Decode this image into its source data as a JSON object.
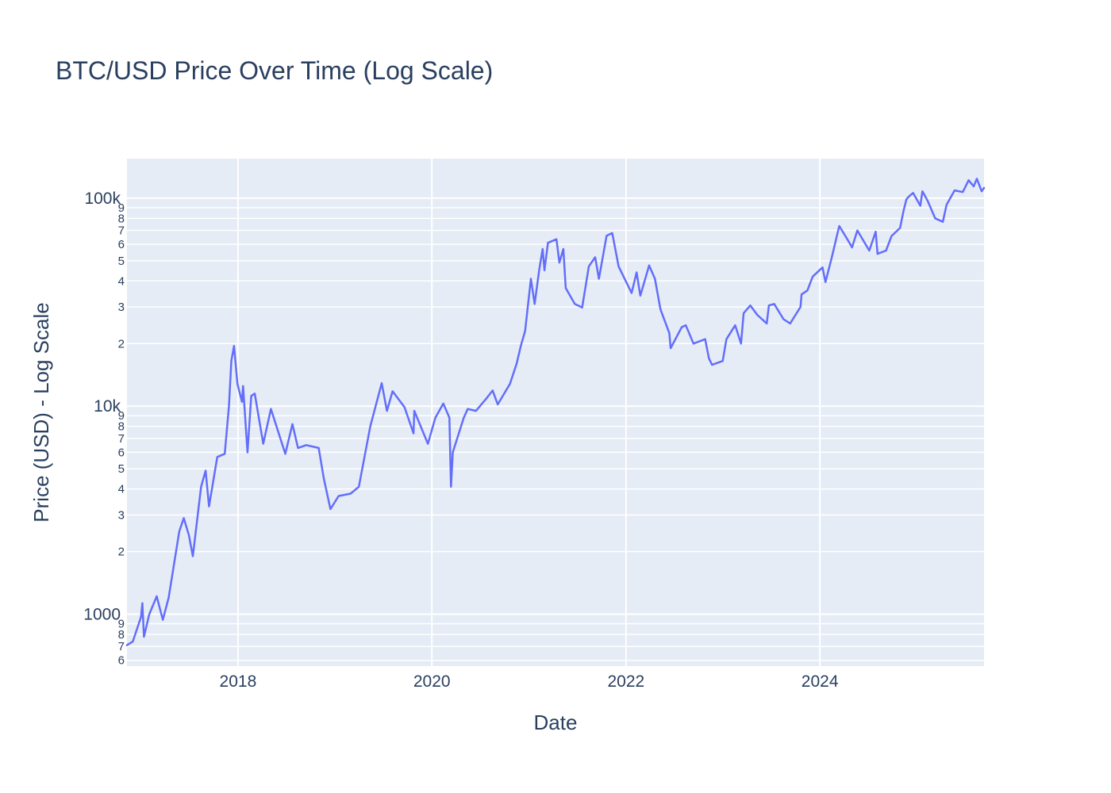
{
  "chart_data": {
    "type": "line",
    "title": "BTC/USD Price Over Time (Log Scale)",
    "xlabel": "Date",
    "ylabel": "Price (USD) - Log Scale",
    "y_scale": "log",
    "xlim": [
      "2016-11-09",
      "2025-09-10"
    ],
    "ylim": [
      563,
      155000
    ],
    "grid": true,
    "line_color": "#636efa",
    "plot_bgcolor": "#e5ecf6",
    "x_ticks": [
      {
        "value": "2018-01-01",
        "label": "2018"
      },
      {
        "value": "2020-01-01",
        "label": "2020"
      },
      {
        "value": "2022-01-01",
        "label": "2022"
      },
      {
        "value": "2024-01-01",
        "label": "2024"
      }
    ],
    "y_major_ticks": [
      {
        "value": 1000,
        "label": "1000"
      },
      {
        "value": 10000,
        "label": "10k"
      },
      {
        "value": 100000,
        "label": "100k"
      }
    ],
    "y_minor_ticks": [
      {
        "value": 600,
        "label": "6"
      },
      {
        "value": 700,
        "label": "7"
      },
      {
        "value": 800,
        "label": "8"
      },
      {
        "value": 900,
        "label": "9"
      },
      {
        "value": 2000,
        "label": "2"
      },
      {
        "value": 3000,
        "label": "3"
      },
      {
        "value": 4000,
        "label": "4"
      },
      {
        "value": 5000,
        "label": "5"
      },
      {
        "value": 6000,
        "label": "6"
      },
      {
        "value": 7000,
        "label": "7"
      },
      {
        "value": 8000,
        "label": "8"
      },
      {
        "value": 9000,
        "label": "9"
      },
      {
        "value": 20000,
        "label": "2"
      },
      {
        "value": 30000,
        "label": "3"
      },
      {
        "value": 40000,
        "label": "4"
      },
      {
        "value": 50000,
        "label": "5"
      },
      {
        "value": 60000,
        "label": "6"
      },
      {
        "value": 70000,
        "label": "7"
      },
      {
        "value": 80000,
        "label": "8"
      },
      {
        "value": 90000,
        "label": "9"
      }
    ],
    "series": [
      {
        "x": [
          "2016-11-09",
          "2016-12-01",
          "2017-01-01",
          "2017-01-06",
          "2017-01-12",
          "2017-02-01",
          "2017-03-01",
          "2017-03-10",
          "2017-03-24",
          "2017-04-15",
          "2017-05-25",
          "2017-06-11",
          "2017-06-30",
          "2017-07-15",
          "2017-08-15",
          "2017-09-01",
          "2017-09-14",
          "2017-10-15",
          "2017-11-12",
          "2017-11-28",
          "2017-12-07",
          "2017-12-17",
          "2017-12-30",
          "2018-01-16",
          "2018-01-20",
          "2018-02-06",
          "2018-02-20",
          "2018-03-05",
          "2018-04-06",
          "2018-05-05",
          "2018-06-28",
          "2018-07-25",
          "2018-08-15",
          "2018-09-15",
          "2018-11-01",
          "2018-11-20",
          "2018-12-15",
          "2019-01-15",
          "2019-03-01",
          "2019-04-01",
          "2019-05-14",
          "2019-06-26",
          "2019-07-16",
          "2019-08-06",
          "2019-09-20",
          "2019-10-24",
          "2019-10-27",
          "2019-12-17",
          "2020-01-14",
          "2020-02-13",
          "2020-03-07",
          "2020-03-13",
          "2020-03-20",
          "2020-04-30",
          "2020-05-15",
          "2020-06-15",
          "2020-07-27",
          "2020-08-17",
          "2020-09-05",
          "2020-10-21",
          "2020-11-15",
          "2020-12-01",
          "2020-12-17",
          "2021-01-08",
          "2021-01-22",
          "2021-02-08",
          "2021-02-21",
          "2021-02-28",
          "2021-03-13",
          "2021-04-14",
          "2021-04-25",
          "2021-05-10",
          "2021-05-19",
          "2021-06-22",
          "2021-07-20",
          "2021-08-14",
          "2021-09-07",
          "2021-09-21",
          "2021-10-20",
          "2021-11-10",
          "2021-12-04",
          "2022-01-22",
          "2022-02-10",
          "2022-02-24",
          "2022-03-29",
          "2022-04-20",
          "2022-05-09",
          "2022-05-12",
          "2022-06-13",
          "2022-06-18",
          "2022-07-30",
          "2022-08-14",
          "2022-09-12",
          "2022-10-26",
          "2022-11-09",
          "2022-11-21",
          "2022-12-31",
          "2023-01-14",
          "2023-02-16",
          "2023-03-10",
          "2023-03-20",
          "2023-04-14",
          "2023-05-10",
          "2023-06-15",
          "2023-06-23",
          "2023-07-13",
          "2023-08-17",
          "2023-09-11",
          "2023-10-20",
          "2023-10-24",
          "2023-11-15",
          "2023-12-05",
          "2024-01-11",
          "2024-01-22",
          "2024-02-15",
          "2024-03-05",
          "2024-03-14",
          "2024-04-15",
          "2024-05-01",
          "2024-05-21",
          "2024-07-05",
          "2024-07-29",
          "2024-08-05",
          "2024-09-06",
          "2024-09-27",
          "2024-10-29",
          "2024-11-12",
          "2024-11-22",
          "2024-12-05",
          "2024-12-17",
          "2025-01-13",
          "2025-01-21",
          "2025-02-10",
          "2025-03-10",
          "2025-04-08",
          "2025-04-22",
          "2025-05-22",
          "2025-06-22",
          "2025-07-14",
          "2025-08-02",
          "2025-08-14",
          "2025-09-01",
          "2025-09-10"
        ],
        "y": [
          710,
          740,
          970,
          1130,
          780,
          1000,
          1220,
          1100,
          940,
          1200,
          2500,
          2900,
          2400,
          1900,
          4100,
          4900,
          3300,
          5700,
          5900,
          10000,
          16500,
          19500,
          12800,
          10500,
          12500,
          6000,
          11200,
          11500,
          6600,
          9700,
          5900,
          8200,
          6300,
          6500,
          6300,
          4500,
          3200,
          3700,
          3800,
          4100,
          8000,
          12900,
          9500,
          11800,
          9900,
          7400,
          9500,
          6600,
          8800,
          10300,
          8800,
          4100,
          6000,
          8800,
          9700,
          9500,
          11000,
          11900,
          10200,
          12800,
          16000,
          19500,
          23000,
          41000,
          31000,
          45000,
          57000,
          45000,
          61000,
          63500,
          49000,
          57000,
          37000,
          31000,
          29800,
          47000,
          52000,
          41000,
          66000,
          68000,
          47000,
          35000,
          44000,
          34000,
          47500,
          41000,
          30000,
          28900,
          22500,
          19000,
          24000,
          24500,
          20000,
          21000,
          17000,
          15800,
          16500,
          21000,
          24500,
          20000,
          28000,
          30500,
          27500,
          25000,
          30500,
          31000,
          26200,
          25000,
          30000,
          34500,
          36000,
          42000,
          46500,
          39500,
          52000,
          66000,
          73500,
          63000,
          58000,
          70000,
          56000,
          69000,
          54000,
          56000,
          65800,
          72000,
          88000,
          99000,
          103000,
          106000,
          92000,
          108000,
          97000,
          80000,
          77000,
          93000,
          109000,
          107000,
          122000,
          114000,
          124000,
          108000,
          112000
        ]
      }
    ]
  }
}
